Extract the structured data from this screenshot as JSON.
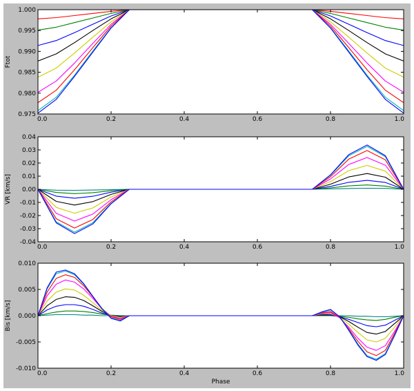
{
  "chart_data": [
    {
      "type": "line",
      "ylabel": "Ftot",
      "xlim": [
        0.0,
        1.0
      ],
      "ylim": [
        0.975,
        1.0
      ],
      "xticks": [
        "0.0",
        "0.2",
        "0.4",
        "0.6",
        "0.8",
        "1.0"
      ],
      "yticks": [
        "0.975",
        "0.980",
        "0.985",
        "0.990",
        "0.995",
        "1.000"
      ],
      "x": [
        0.0,
        0.05,
        0.1,
        0.15,
        0.2,
        0.25,
        0.3,
        0.35,
        0.4,
        0.45,
        0.5,
        0.55,
        0.6,
        0.65,
        0.7,
        0.75,
        0.8,
        0.85,
        0.9,
        0.95,
        1.0
      ],
      "series": [
        {
          "color": "#ff0000",
          "values": [
            0.9978,
            0.9981,
            0.9986,
            0.9991,
            0.9996,
            1.0,
            1.0,
            1.0,
            1.0,
            1.0,
            1.0,
            1.0,
            1.0,
            1.0,
            1.0,
            1.0,
            0.9996,
            0.9991,
            0.9986,
            0.9981,
            0.9978
          ]
        },
        {
          "color": "#008000",
          "values": [
            0.9951,
            0.9958,
            0.9969,
            0.998,
            0.9991,
            1.0,
            1.0,
            1.0,
            1.0,
            1.0,
            1.0,
            1.0,
            1.0,
            1.0,
            1.0,
            1.0,
            0.9991,
            0.998,
            0.9969,
            0.9958,
            0.9951
          ]
        },
        {
          "color": "#0000ff",
          "values": [
            0.9914,
            0.9926,
            0.9945,
            0.9965,
            0.9985,
            1.0,
            1.0,
            1.0,
            1.0,
            1.0,
            1.0,
            1.0,
            1.0,
            1.0,
            1.0,
            1.0,
            0.9985,
            0.9965,
            0.9945,
            0.9926,
            0.9914
          ]
        },
        {
          "color": "#000000",
          "values": [
            0.9877,
            0.9894,
            0.9921,
            0.995,
            0.9978,
            1.0,
            1.0,
            1.0,
            1.0,
            1.0,
            1.0,
            1.0,
            1.0,
            1.0,
            1.0,
            1.0,
            0.9978,
            0.995,
            0.9921,
            0.9894,
            0.9877
          ]
        },
        {
          "color": "#cccc00",
          "values": [
            0.9838,
            0.986,
            0.9896,
            0.9934,
            0.9971,
            1.0,
            1.0,
            1.0,
            1.0,
            1.0,
            1.0,
            1.0,
            1.0,
            1.0,
            1.0,
            1.0,
            0.9971,
            0.9934,
            0.9896,
            0.986,
            0.9838
          ]
        },
        {
          "color": "#ff00ff",
          "values": [
            0.9802,
            0.9829,
            0.9872,
            0.9919,
            0.9965,
            1.0,
            1.0,
            1.0,
            1.0,
            1.0,
            1.0,
            1.0,
            1.0,
            1.0,
            1.0,
            1.0,
            0.9965,
            0.9919,
            0.9872,
            0.9829,
            0.9802
          ]
        },
        {
          "color": "#ff0000",
          "values": [
            0.9777,
            0.9807,
            0.9856,
            0.9909,
            0.9961,
            1.0,
            1.0,
            1.0,
            1.0,
            1.0,
            1.0,
            1.0,
            1.0,
            1.0,
            1.0,
            1.0,
            0.9961,
            0.9909,
            0.9856,
            0.9807,
            0.9777
          ]
        },
        {
          "color": "#00b3b3",
          "values": [
            0.9758,
            0.979,
            0.9843,
            0.9901,
            0.9957,
            1.0,
            1.0,
            1.0,
            1.0,
            1.0,
            1.0,
            1.0,
            1.0,
            1.0,
            1.0,
            1.0,
            0.9957,
            0.9901,
            0.9843,
            0.979,
            0.9758
          ]
        },
        {
          "color": "#0000ff",
          "values": [
            0.9752,
            0.9785,
            0.984,
            0.9898,
            0.9956,
            1.0,
            1.0,
            1.0,
            1.0,
            1.0,
            1.0,
            1.0,
            1.0,
            1.0,
            1.0,
            1.0,
            0.9956,
            0.9898,
            0.984,
            0.9785,
            0.9752
          ]
        }
      ]
    },
    {
      "type": "line",
      "ylabel": "VR [km/s]",
      "xlim": [
        0.0,
        1.0
      ],
      "ylim": [
        -0.04,
        0.04
      ],
      "xticks": [
        "0.0",
        "0.2",
        "0.4",
        "0.6",
        "0.8",
        "1.0"
      ],
      "yticks": [
        "-0.04",
        "-0.03",
        "-0.02",
        "-0.01",
        "0.00",
        "0.01",
        "0.02",
        "0.03",
        "0.04"
      ],
      "x": [
        0.0,
        0.05,
        0.1,
        0.15,
        0.2,
        0.25,
        0.3,
        0.35,
        0.4,
        0.45,
        0.5,
        0.55,
        0.6,
        0.65,
        0.7,
        0.75,
        0.8,
        0.85,
        0.9,
        0.95,
        1.0
      ],
      "series": [
        {
          "color": "#008080",
          "values": [
            0,
            -0.0007,
            -0.0008,
            -0.0006,
            -0.0003,
            0,
            0,
            0,
            0,
            0,
            0,
            0,
            0,
            0,
            0,
            0,
            0.0003,
            0.0006,
            0.0008,
            0.0007,
            0
          ]
        },
        {
          "color": "#008000",
          "values": [
            0,
            -0.0024,
            -0.0033,
            -0.0026,
            -0.0011,
            0,
            0,
            0,
            0,
            0,
            0,
            0,
            0,
            0,
            0,
            0,
            0.0011,
            0.0026,
            0.0033,
            0.0024,
            0
          ]
        },
        {
          "color": "#0000ff",
          "values": [
            0,
            -0.0052,
            -0.0068,
            -0.0053,
            -0.0022,
            0,
            0,
            0,
            0,
            0,
            0,
            0,
            0,
            0,
            0,
            0,
            0.0022,
            0.0053,
            0.0068,
            0.0052,
            0
          ]
        },
        {
          "color": "#000000",
          "values": [
            0,
            -0.0092,
            -0.012,
            -0.0094,
            -0.0039,
            0,
            0,
            0,
            0,
            0,
            0,
            0,
            0,
            0,
            0,
            0,
            0.0039,
            0.0094,
            0.012,
            0.0092,
            0
          ]
        },
        {
          "color": "#cccc00",
          "values": [
            0,
            -0.0138,
            -0.0182,
            -0.0142,
            -0.0059,
            0,
            0,
            0,
            0,
            0,
            0,
            0,
            0,
            0,
            0,
            0,
            0.0059,
            0.0142,
            0.0182,
            0.0138,
            0
          ]
        },
        {
          "color": "#ff00ff",
          "values": [
            0,
            -0.0183,
            -0.0242,
            -0.0189,
            -0.0079,
            0,
            0,
            0,
            0,
            0,
            0,
            0,
            0,
            0,
            0,
            0,
            0.0079,
            0.0189,
            0.0242,
            0.0183,
            0
          ]
        },
        {
          "color": "#ff0000",
          "values": [
            0,
            -0.0224,
            -0.0295,
            -0.023,
            -0.0096,
            0,
            0,
            0,
            0,
            0,
            0,
            0,
            0,
            0,
            0,
            0,
            0.0096,
            0.023,
            0.0295,
            0.0224,
            0
          ]
        },
        {
          "color": "#00b3b3",
          "values": [
            0,
            -0.0248,
            -0.0327,
            -0.0255,
            -0.0107,
            0,
            0,
            0,
            0,
            0,
            0,
            0,
            0,
            0,
            0,
            0,
            0.0107,
            0.0255,
            0.0327,
            0.0248,
            0
          ]
        },
        {
          "color": "#0000ff",
          "values": [
            0,
            -0.0256,
            -0.0338,
            -0.0264,
            -0.011,
            0,
            0,
            0,
            0,
            0,
            0,
            0,
            0,
            0,
            0,
            0,
            0.011,
            0.0264,
            0.0338,
            0.0256,
            0
          ]
        }
      ]
    },
    {
      "type": "line",
      "xlabel": "Phase",
      "ylabel": "Bis [km/s]",
      "xlim": [
        0.0,
        1.0
      ],
      "ylim": [
        -0.01,
        0.01
      ],
      "xticks": [
        "0.0",
        "0.2",
        "0.4",
        "0.6",
        "0.8",
        "1.0"
      ],
      "yticks": [
        "-0.010",
        "-0.005",
        "0.000",
        "0.005",
        "0.010"
      ],
      "x": [
        0.0,
        0.025,
        0.05,
        0.075,
        0.1,
        0.125,
        0.15,
        0.175,
        0.2,
        0.225,
        0.25,
        0.3,
        0.4,
        0.5,
        0.6,
        0.7,
        0.75,
        0.775,
        0.8,
        0.825,
        0.85,
        0.875,
        0.9,
        0.925,
        0.95,
        0.975,
        1.0
      ],
      "series": [
        {
          "color": "#008080",
          "values": [
            0,
            0.0001,
            0.0002,
            0.0002,
            0.0002,
            0.0001,
            0.0001,
            0,
            0,
            0,
            0,
            0,
            0,
            0,
            0,
            0,
            0,
            0,
            0,
            0,
            0,
            -0.0001,
            -0.0001,
            -0.0002,
            -0.0002,
            -0.0001,
            0
          ]
        },
        {
          "color": "#008000",
          "values": [
            0,
            0.0004,
            0.0007,
            0.0009,
            0.0009,
            0.0008,
            0.0006,
            0.0003,
            0.0001,
            0,
            0,
            0,
            0,
            0,
            0,
            0,
            0,
            0,
            0,
            -0.0001,
            -0.0003,
            -0.0006,
            -0.0008,
            -0.0009,
            -0.0007,
            -0.0003,
            0
          ]
        },
        {
          "color": "#0000ff",
          "values": [
            0,
            0.0011,
            0.0018,
            0.0021,
            0.0021,
            0.0018,
            0.0012,
            0.0005,
            0,
            -0.0001,
            0,
            0,
            0,
            0,
            0,
            0,
            0,
            0.0001,
            0.0001,
            -0.0002,
            -0.0007,
            -0.0013,
            -0.0019,
            -0.0021,
            -0.0018,
            -0.0009,
            0
          ]
        },
        {
          "color": "#000000",
          "values": [
            0,
            0.0019,
            0.0031,
            0.0036,
            0.0035,
            0.0029,
            0.0019,
            0.0008,
            0,
            -0.0002,
            0,
            0,
            0,
            0,
            0,
            0,
            0,
            0.0002,
            0.0003,
            -0.0002,
            -0.0011,
            -0.0022,
            -0.0032,
            -0.0035,
            -0.003,
            -0.0015,
            0
          ]
        },
        {
          "color": "#cccc00",
          "values": [
            0,
            0.0028,
            0.0045,
            0.0051,
            0.0049,
            0.0039,
            0.0025,
            0.001,
            0,
            -0.0003,
            0,
            0,
            0,
            0,
            0,
            0,
            0,
            0.0003,
            0.0004,
            -0.0003,
            -0.0016,
            -0.0032,
            -0.0046,
            -0.005,
            -0.0043,
            -0.0022,
            0
          ]
        },
        {
          "color": "#ff00ff",
          "values": [
            0,
            0.0038,
            0.006,
            0.0068,
            0.0064,
            0.0051,
            0.0033,
            0.0013,
            -0.0001,
            -0.0005,
            0,
            0,
            0,
            0,
            0,
            0,
            0,
            0.0004,
            0.0006,
            -0.0004,
            -0.0022,
            -0.0043,
            -0.006,
            -0.0066,
            -0.0057,
            -0.003,
            0
          ]
        },
        {
          "color": "#ff0000",
          "values": [
            0,
            0.0045,
            0.0071,
            0.0078,
            0.0073,
            0.0057,
            0.0036,
            0.0014,
            -0.0002,
            -0.0007,
            0,
            0,
            0,
            0,
            0,
            0,
            0,
            0.0005,
            0.0008,
            -0.0003,
            -0.0025,
            -0.0049,
            -0.0069,
            -0.0076,
            -0.0066,
            -0.0034,
            0
          ]
        },
        {
          "color": "#00b3b3",
          "values": [
            0,
            0.0051,
            0.008,
            0.0085,
            0.0078,
            0.006,
            0.0037,
            0.0014,
            -0.0004,
            -0.0009,
            0,
            0,
            0,
            0,
            0,
            0,
            0,
            0.0006,
            0.0011,
            -0.0002,
            -0.0027,
            -0.0054,
            -0.0076,
            -0.0083,
            -0.0072,
            -0.0037,
            0
          ]
        },
        {
          "color": "#0000ff",
          "values": [
            0,
            0.0053,
            0.0083,
            0.0087,
            0.008,
            0.0061,
            0.0037,
            0.0013,
            -0.0005,
            -0.001,
            0,
            0,
            0,
            0,
            0,
            0,
            0,
            0.0007,
            0.0012,
            -0.0002,
            -0.0028,
            -0.0056,
            -0.0078,
            -0.0085,
            -0.0074,
            -0.0038,
            0
          ]
        }
      ]
    }
  ]
}
